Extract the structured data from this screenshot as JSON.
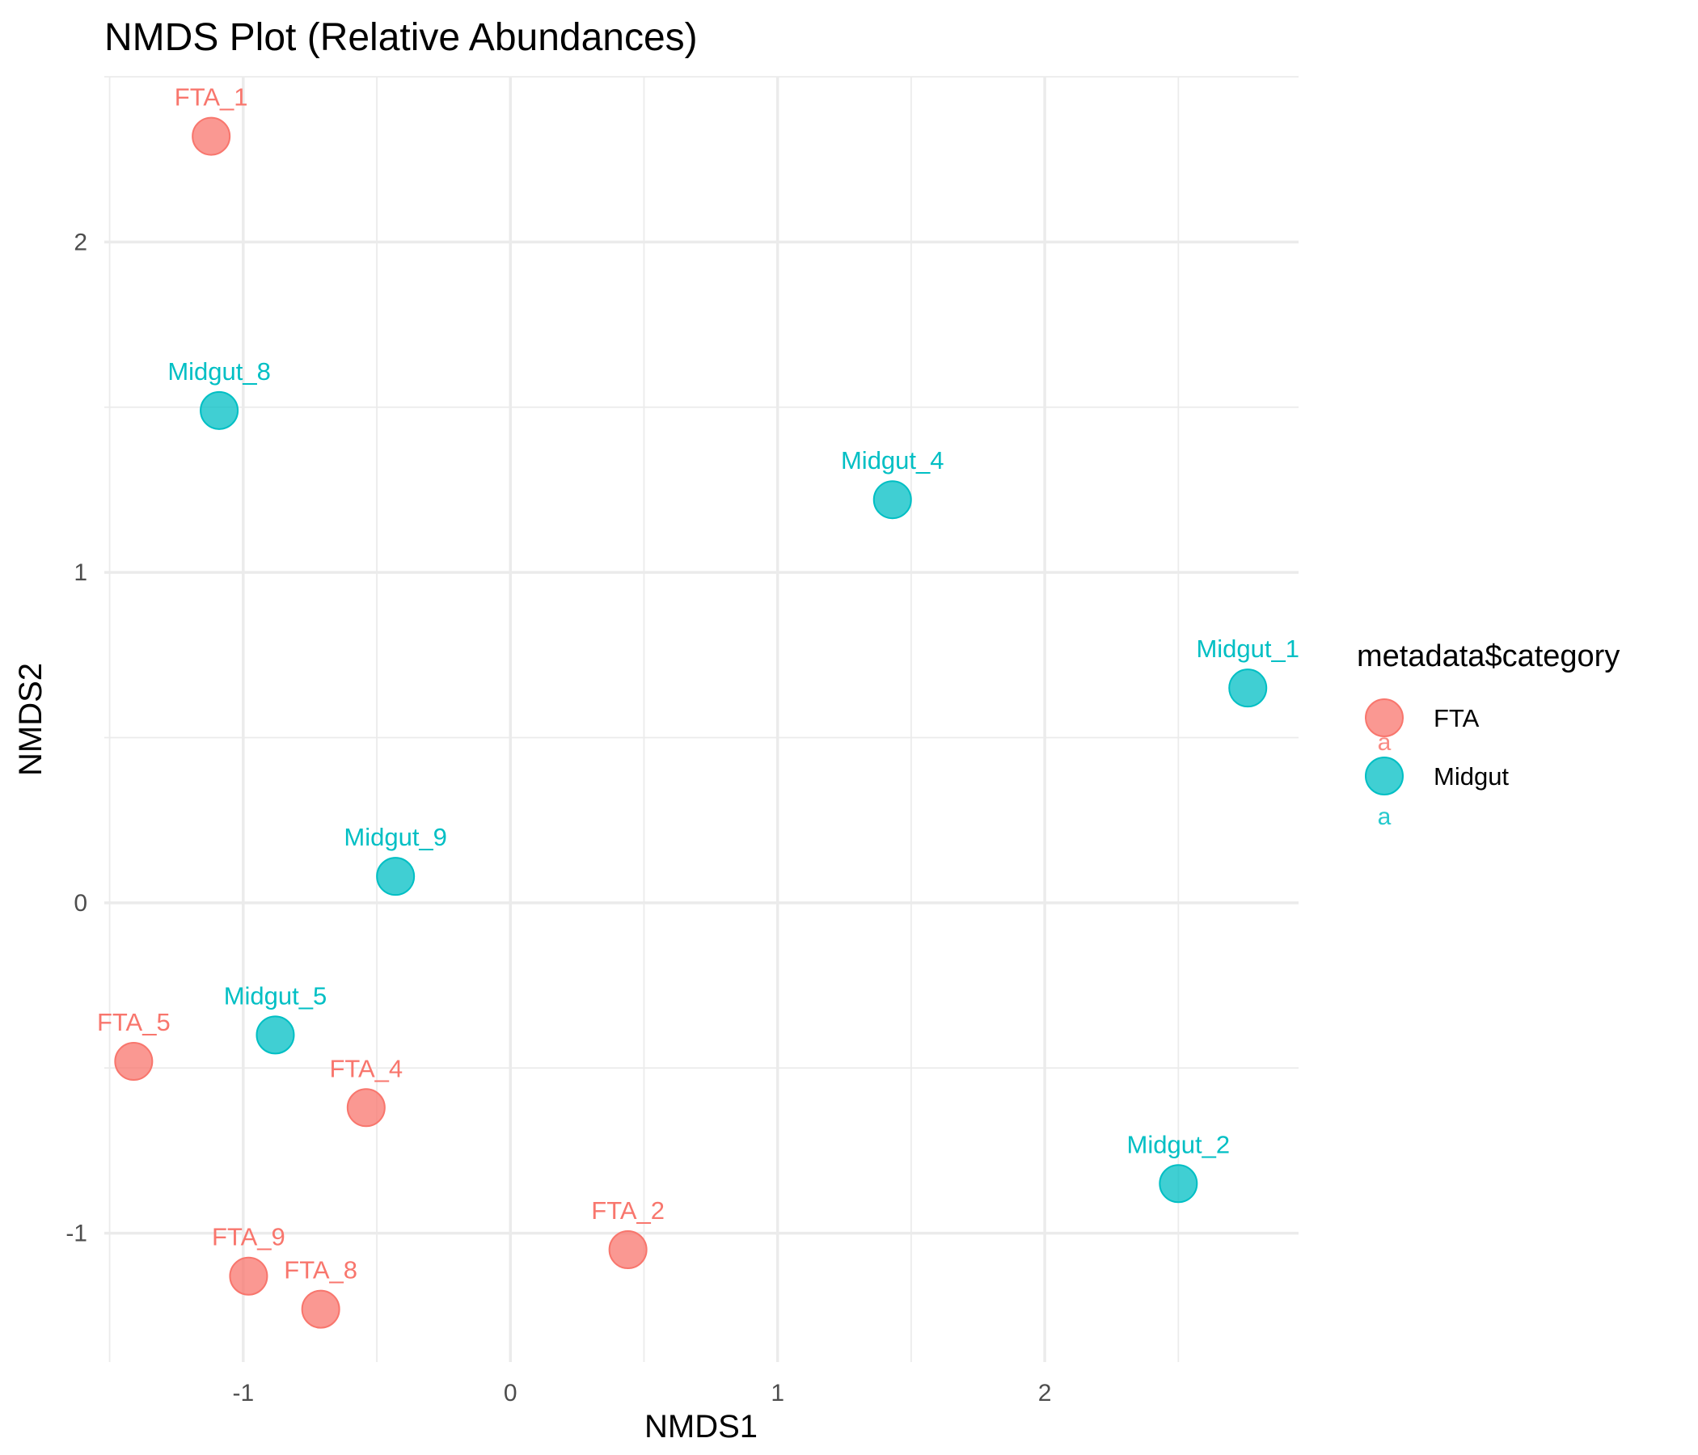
{
  "chart_data": {
    "type": "scatter",
    "title": "NMDS Plot (Relative Abundances)",
    "xlabel": "NMDS1",
    "ylabel": "NMDS2",
    "xlim": [
      -1.52,
      2.95
    ],
    "ylim": [
      -1.39,
      2.5
    ],
    "xticks": [
      -1,
      0,
      1,
      2
    ],
    "yticks": [
      -1,
      0,
      1,
      2
    ],
    "grid": true,
    "legend": {
      "title": "metadata$category",
      "placement": "right",
      "key_glyph_text": "a"
    },
    "series": [
      {
        "name": "FTA",
        "color": "#F8766D",
        "points": [
          {
            "label": "FTA_1",
            "x": -1.12,
            "y": 2.32
          },
          {
            "label": "FTA_5",
            "x": -1.41,
            "y": -0.48
          },
          {
            "label": "FTA_4",
            "x": -0.54,
            "y": -0.62
          },
          {
            "label": "FTA_9",
            "x": -0.98,
            "y": -1.13
          },
          {
            "label": "FTA_8",
            "x": -0.71,
            "y": -1.23
          },
          {
            "label": "FTA_2",
            "x": 0.44,
            "y": -1.05
          }
        ]
      },
      {
        "name": "Midgut",
        "color": "#00BFC4",
        "points": [
          {
            "label": "Midgut_8",
            "x": -1.09,
            "y": 1.49
          },
          {
            "label": "Midgut_4",
            "x": 1.43,
            "y": 1.22
          },
          {
            "label": "Midgut_1",
            "x": 2.76,
            "y": 0.65
          },
          {
            "label": "Midgut_9",
            "x": -0.43,
            "y": 0.08
          },
          {
            "label": "Midgut_5",
            "x": -0.88,
            "y": -0.4
          },
          {
            "label": "Midgut_2",
            "x": 2.5,
            "y": -0.85
          }
        ]
      }
    ]
  }
}
